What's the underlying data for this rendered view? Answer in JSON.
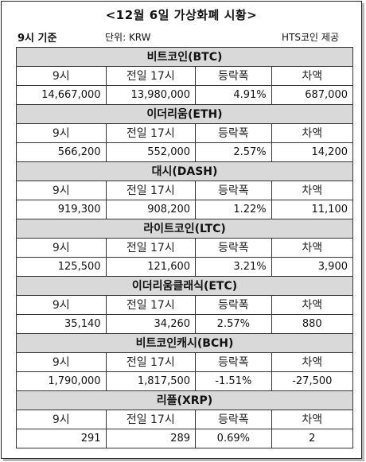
{
  "title": "<12월 6일 가상화폐 시황>",
  "meta": {
    "time": "9시 기준",
    "unit": "단위: KRW",
    "source": "HTS코인 제공"
  },
  "headers": [
    "9시",
    "전일 17시",
    "등락폭",
    "차액"
  ],
  "coins": [
    {
      "name": "비트코인(BTC)",
      "now": "14,667,000",
      "prev": "13,980,000",
      "rate": "4.91%",
      "diff": "687,000"
    },
    {
      "name": "이더리움(ETH)",
      "now": "566,200",
      "prev": "552,000",
      "rate": "2.57%",
      "diff": "14,200"
    },
    {
      "name": "대시(DASH)",
      "now": "919,300",
      "prev": "908,200",
      "rate": "1.22%",
      "diff": "11,100"
    },
    {
      "name": "라이트코인(LTC)",
      "now": "125,500",
      "prev": "121,600",
      "rate": "3.21%",
      "diff": "3,900"
    },
    {
      "name": "이더리움클래식(ETC)",
      "now": "35,140",
      "prev": "34,260",
      "rate": "2.57%",
      "diff": "880"
    },
    {
      "name": "비트코인캐시(BCH)",
      "now": "1,790,000",
      "prev": "1,817,500",
      "rate": "-1.51%",
      "diff": "-27,500"
    },
    {
      "name": "리플(XRP)",
      "now": "291",
      "prev": "289",
      "rate": "0.69%",
      "diff": "2"
    }
  ]
}
